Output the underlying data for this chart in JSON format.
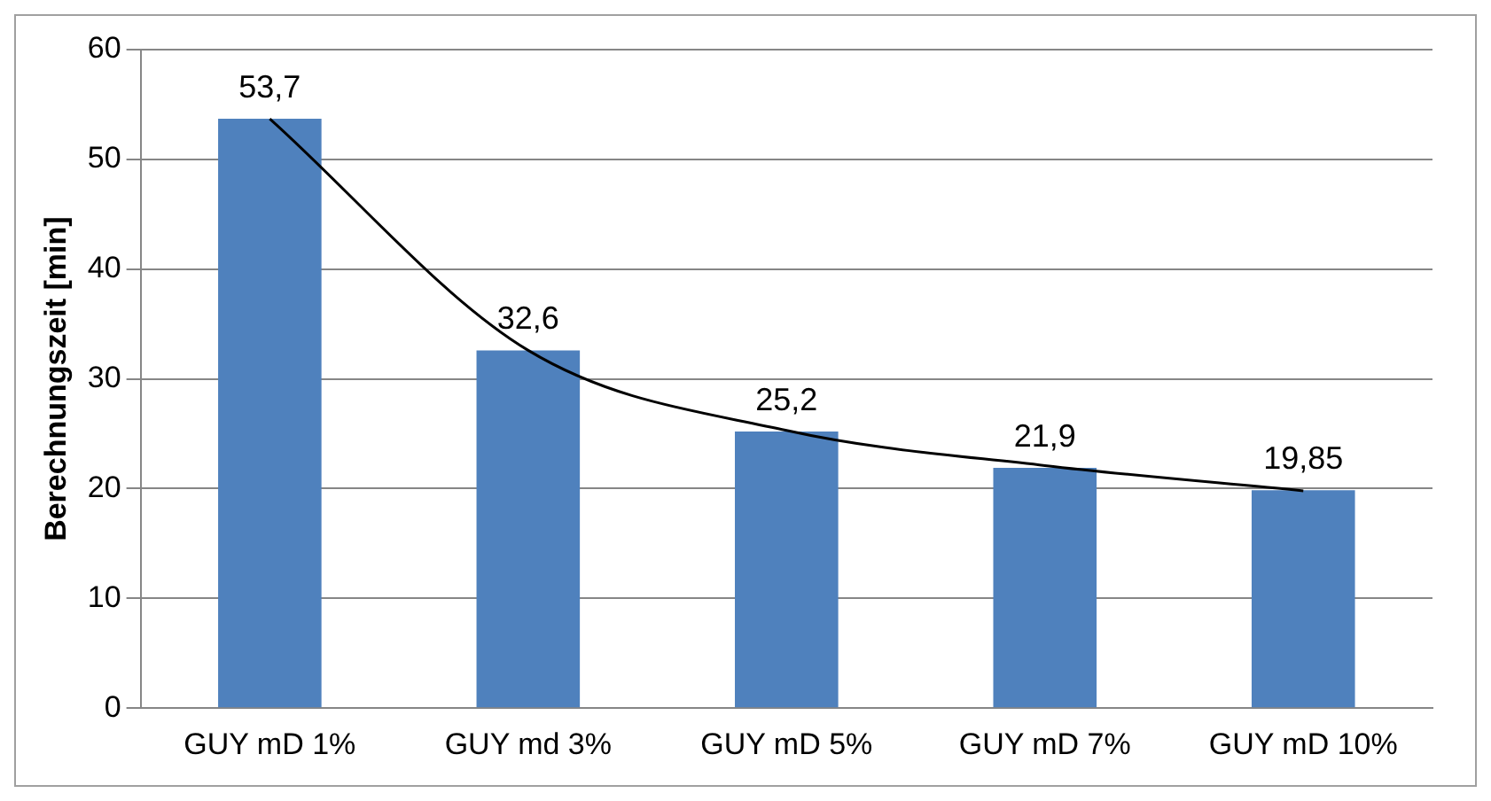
{
  "chart_data": {
    "type": "bar",
    "ylabel": "Berechnungszeit [min]",
    "categories": [
      "GUY mD 1%",
      "GUY md 3%",
      "GUY mD 5%",
      "GUY mD 7%",
      "GUY mD 10%"
    ],
    "series": [
      {
        "color": "#4f81bd",
        "values": [
          53.7,
          32.6,
          25.2,
          21.9,
          19.85
        ],
        "value_labels": [
          "53,7",
          "32,6",
          "25,2",
          "21,9",
          "19,85"
        ]
      },
      {
        "type": "line",
        "color": "#000000",
        "x": [
          "GUY mD 1%",
          "GUY md 3%",
          "GUY mD 5%",
          "GUY mD 7%",
          "GUY mD 10%"
        ],
        "values": [
          53.7,
          32.6,
          25.3,
          22.1,
          19.8
        ],
        "marker": "none"
      }
    ],
    "ylim": [
      0,
      60
    ],
    "yticks": [
      0,
      10,
      20,
      30,
      40,
      50,
      60
    ],
    "grid": "y",
    "legend": false
  }
}
